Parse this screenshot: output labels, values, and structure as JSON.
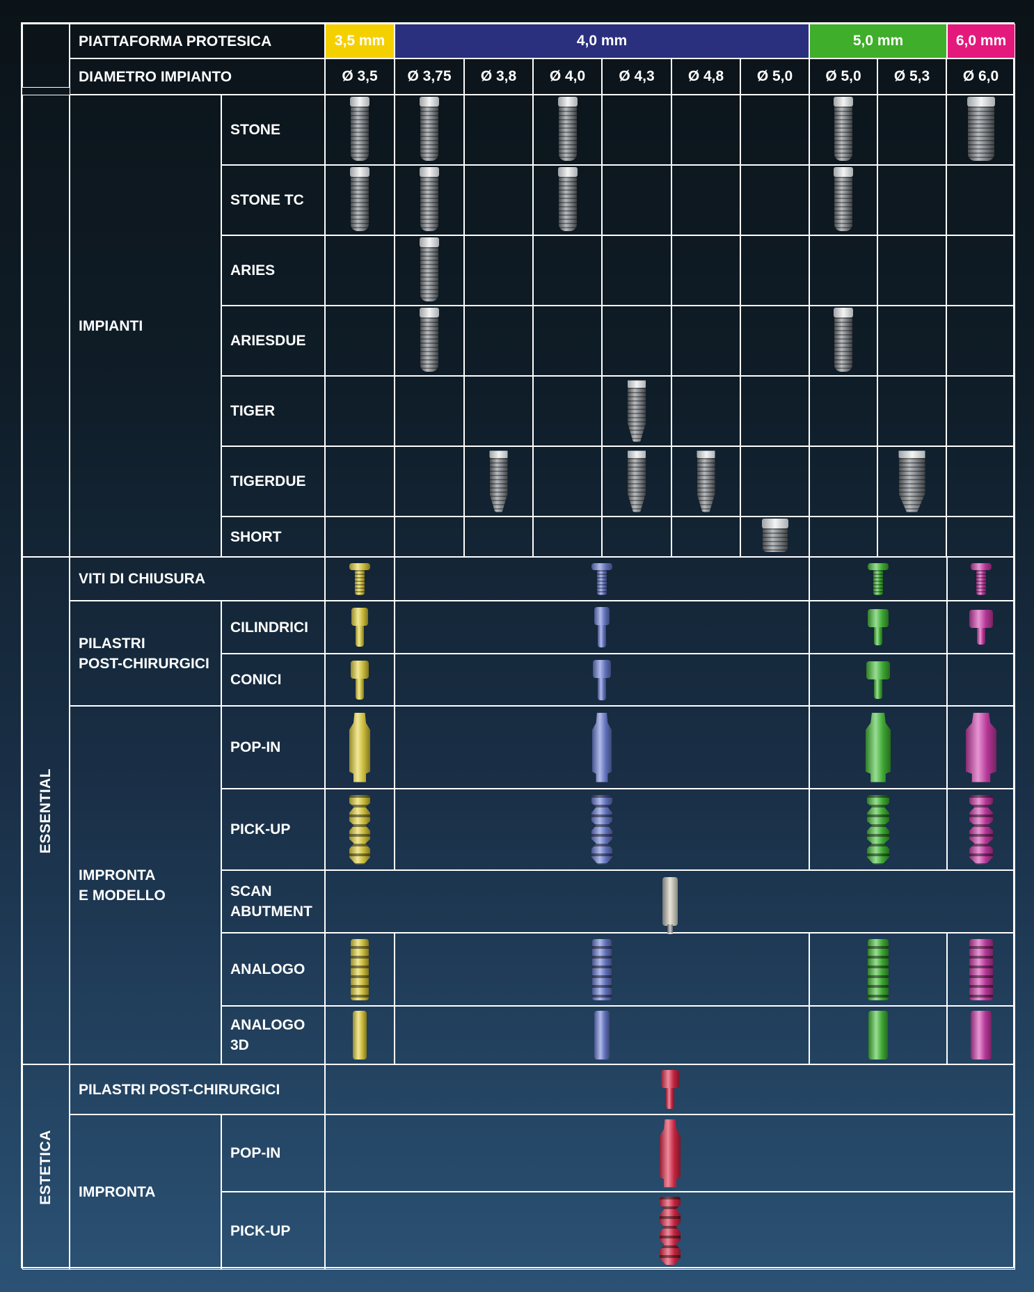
{
  "header": {
    "platform_label": "PIATTAFORMA PROTESICA",
    "diameter_label": "DIAMETRO IMPIANTO",
    "platforms": [
      {
        "label": "3,5 mm",
        "color": "#f5d000"
      },
      {
        "label": "4,0 mm",
        "color": "#2a2f7e"
      },
      {
        "label": "5,0 mm",
        "color": "#3fae2a"
      },
      {
        "label": "6,0 mm",
        "color": "#e4197c"
      }
    ],
    "diameters": [
      "Ø 3,5",
      "Ø 3,75",
      "Ø 3,8",
      "Ø 4,0",
      "Ø 4,3",
      "Ø 4,8",
      "Ø 5,0",
      "Ø 5,0",
      "Ø 5,3",
      "Ø 6,0"
    ]
  },
  "sections": {
    "essential": "ESSENTIAL",
    "estetica": "ESTETICA"
  },
  "groups": {
    "impianti": "IMPIANTI",
    "viti": "VITI DI CHIUSURA",
    "pilastri_line1": "PILASTRI",
    "pilastri_line2": "POST-CHIRURGICI",
    "impronta_line1": "IMPRONTA",
    "impronta_line2": "E MODELLO",
    "estetica_pilastri": "PILASTRI POST-CHIRURGICI",
    "estetica_impronta": "IMPRONTA"
  },
  "rows": {
    "stone": "STONE",
    "stone_tc": "STONE TC",
    "aries": "ARIES",
    "ariesdue": "ARIESDUE",
    "tiger": "TIGER",
    "tigerdue": "TIGERDUE",
    "short": "SHORT",
    "cilindrici": "CILINDRICI",
    "conici": "CONICI",
    "pop_in": "POP-IN",
    "pick_up": "PICK-UP",
    "scan_line1": "SCAN",
    "scan_line2": "ABUTMENT",
    "analogo": "ANALOGO",
    "analogo3d_line1": "ANALOGO",
    "analogo3d_line2": "3D",
    "est_pop_in": "POP-IN",
    "est_pick_up": "PICK-UP"
  },
  "availability": {
    "stone": [
      1,
      1,
      0,
      1,
      0,
      0,
      0,
      1,
      0,
      1
    ],
    "stone_tc": [
      1,
      1,
      0,
      1,
      0,
      0,
      0,
      1,
      0,
      0
    ],
    "aries": [
      0,
      1,
      0,
      0,
      0,
      0,
      0,
      0,
      0,
      0
    ],
    "ariesdue": [
      0,
      1,
      0,
      0,
      0,
      0,
      0,
      1,
      0,
      0
    ],
    "tiger": [
      0,
      0,
      0,
      0,
      1,
      0,
      0,
      0,
      0,
      0
    ],
    "tigerdue": [
      0,
      0,
      1,
      0,
      1,
      1,
      0,
      0,
      1,
      0
    ],
    "short": [
      0,
      0,
      0,
      0,
      0,
      0,
      1,
      0,
      0,
      0
    ]
  },
  "component_colors": {
    "yellow": "#e8d640",
    "blue": "#6f82d8",
    "green": "#46c23a",
    "magenta": "#d43fb0",
    "red": "#e32a4a"
  },
  "icons": {
    "implant": "dental-implant-icon",
    "healing_screw": "healing-screw-icon",
    "healing_abutment": "healing-abutment-icon",
    "impression_coping": "impression-coping-icon",
    "scan_abutment": "scan-abutment-icon",
    "analog": "implant-analog-icon"
  }
}
